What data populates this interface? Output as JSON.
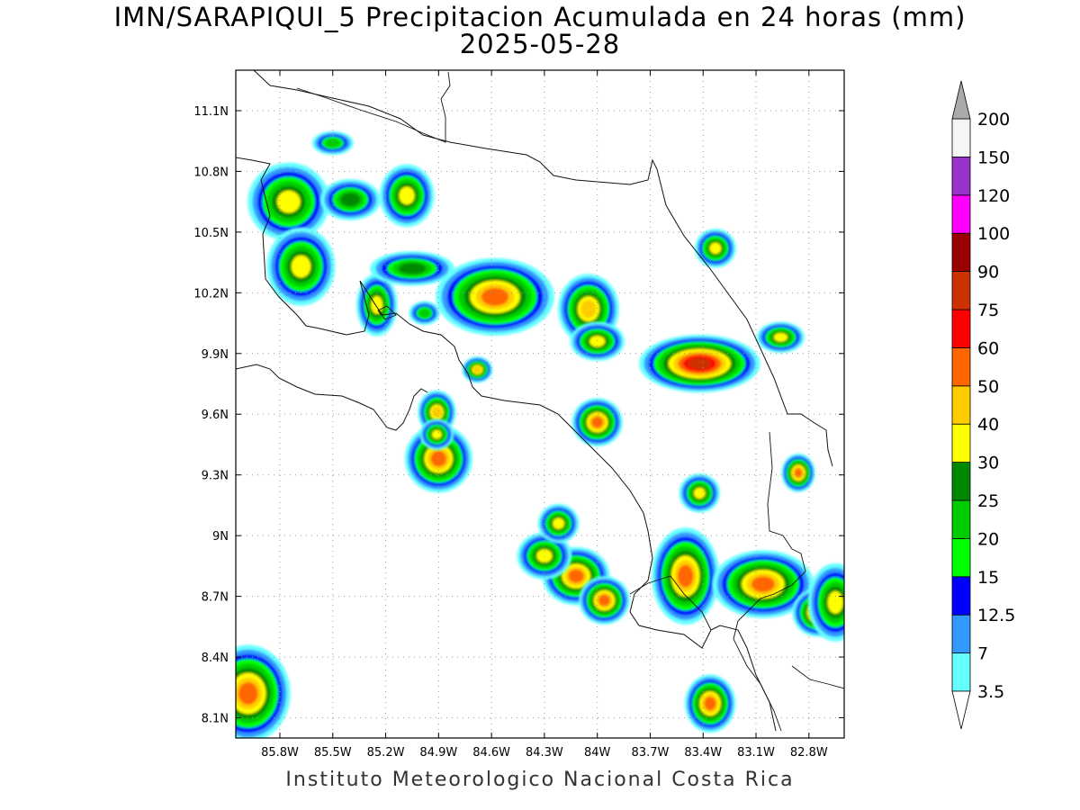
{
  "title": "IMN/SARAPIQUI_5 Precipitacion Acumulada en 24 horas (mm)",
  "date": "2025-05-28",
  "footer": "Instituto Meteorologico Nacional Costa Rica",
  "map": {
    "lon_range": [
      -86.05,
      -82.6
    ],
    "lat_range": [
      8.0,
      11.3
    ],
    "lon_ticks": [
      {
        "value": -85.8,
        "label": "85.8W"
      },
      {
        "value": -85.5,
        "label": "85.5W"
      },
      {
        "value": -85.2,
        "label": "85.2W"
      },
      {
        "value": -84.9,
        "label": "84.9W"
      },
      {
        "value": -84.6,
        "label": "84.6W"
      },
      {
        "value": -84.3,
        "label": "84.3W"
      },
      {
        "value": -84.0,
        "label": "84W"
      },
      {
        "value": -83.7,
        "label": "83.7W"
      },
      {
        "value": -83.4,
        "label": "83.4W"
      },
      {
        "value": -83.1,
        "label": "83.1W"
      },
      {
        "value": -82.8,
        "label": "82.8W"
      }
    ],
    "lat_ticks": [
      {
        "value": 11.1,
        "label": "11.1N"
      },
      {
        "value": 10.8,
        "label": "10.8N"
      },
      {
        "value": 10.5,
        "label": "10.5N"
      },
      {
        "value": 10.2,
        "label": "10.2N"
      },
      {
        "value": 9.9,
        "label": "9.9N"
      },
      {
        "value": 9.6,
        "label": "9.6N"
      },
      {
        "value": 9.3,
        "label": "9.3N"
      },
      {
        "value": 9.0,
        "label": "9N"
      },
      {
        "value": 8.7,
        "label": "8.7N"
      },
      {
        "value": 8.4,
        "label": "8.4N"
      },
      {
        "value": 8.1,
        "label": "8.1N"
      }
    ],
    "grid": true
  },
  "colorbar": {
    "levels": [
      "3.5",
      "7",
      "12.5",
      "15",
      "20",
      "25",
      "30",
      "40",
      "50",
      "60",
      "75",
      "90",
      "100",
      "120",
      "150",
      "200"
    ],
    "colors": [
      "#66ffff",
      "#3399ff",
      "#0000ff",
      "#00ff00",
      "#00cc00",
      "#008800",
      "#ffff00",
      "#ffcc00",
      "#ff6600",
      "#ff0000",
      "#cc3300",
      "#990000",
      "#ff00ff",
      "#9933cc",
      "#f5f5f5",
      "#aaaaaa"
    ]
  },
  "cells": [
    {
      "lon": -85.75,
      "lat": 10.65,
      "rx": 0.12,
      "ry": 0.1,
      "intensity": 7
    },
    {
      "lon": -85.68,
      "lat": 10.33,
      "rx": 0.1,
      "ry": 0.1,
      "intensity": 7
    },
    {
      "lon": -85.4,
      "lat": 10.66,
      "rx": 0.1,
      "ry": 0.06,
      "intensity": 6
    },
    {
      "lon": -85.08,
      "lat": 10.68,
      "rx": 0.08,
      "ry": 0.08,
      "intensity": 7
    },
    {
      "lon": -85.25,
      "lat": 10.14,
      "rx": 0.06,
      "ry": 0.08,
      "intensity": 7
    },
    {
      "lon": -84.58,
      "lat": 10.18,
      "rx": 0.14,
      "ry": 0.08,
      "intensity": 9
    },
    {
      "lon": -84.05,
      "lat": 10.12,
      "rx": 0.08,
      "ry": 0.08,
      "intensity": 8
    },
    {
      "lon": -84.0,
      "lat": 9.96,
      "rx": 0.08,
      "ry": 0.05,
      "intensity": 7
    },
    {
      "lon": -85.05,
      "lat": 10.32,
      "rx": 0.14,
      "ry": 0.05,
      "intensity": 6
    },
    {
      "lon": -84.9,
      "lat": 9.38,
      "rx": 0.08,
      "ry": 0.07,
      "intensity": 9
    },
    {
      "lon": -84.91,
      "lat": 9.61,
      "rx": 0.05,
      "ry": 0.05,
      "intensity": 8
    },
    {
      "lon": -84.91,
      "lat": 9.5,
      "rx": 0.05,
      "ry": 0.04,
      "intensity": 7
    },
    {
      "lon": -83.42,
      "lat": 9.85,
      "rx": 0.12,
      "ry": 0.05,
      "intensity": 11
    },
    {
      "lon": -84.0,
      "lat": 9.56,
      "rx": 0.06,
      "ry": 0.05,
      "intensity": 9
    },
    {
      "lon": -84.12,
      "lat": 8.8,
      "rx": 0.08,
      "ry": 0.06,
      "intensity": 9
    },
    {
      "lon": -84.3,
      "lat": 8.9,
      "rx": 0.08,
      "ry": 0.06,
      "intensity": 7
    },
    {
      "lon": -83.96,
      "lat": 8.68,
      "rx": 0.06,
      "ry": 0.05,
      "intensity": 9
    },
    {
      "lon": -84.22,
      "lat": 9.06,
      "rx": 0.06,
      "ry": 0.05,
      "intensity": 7
    },
    {
      "lon": -83.5,
      "lat": 8.8,
      "rx": 0.08,
      "ry": 0.1,
      "intensity": 9
    },
    {
      "lon": -83.06,
      "lat": 8.76,
      "rx": 0.12,
      "ry": 0.07,
      "intensity": 9
    },
    {
      "lon": -82.75,
      "lat": 8.62,
      "rx": 0.06,
      "ry": 0.05,
      "intensity": 9
    },
    {
      "lon": -82.65,
      "lat": 8.67,
      "rx": 0.08,
      "ry": 0.1,
      "intensity": 7
    },
    {
      "lon": -85.98,
      "lat": 8.22,
      "rx": 0.1,
      "ry": 0.1,
      "intensity": 9
    },
    {
      "lon": -83.36,
      "lat": 8.17,
      "rx": 0.06,
      "ry": 0.06,
      "intensity": 9
    },
    {
      "lon": -82.86,
      "lat": 9.31,
      "rx": 0.04,
      "ry": 0.04,
      "intensity": 9
    },
    {
      "lon": -83.42,
      "lat": 9.21,
      "rx": 0.06,
      "ry": 0.05,
      "intensity": 7
    },
    {
      "lon": -82.96,
      "lat": 9.98,
      "rx": 0.07,
      "ry": 0.04,
      "intensity": 7
    },
    {
      "lon": -83.33,
      "lat": 10.42,
      "rx": 0.06,
      "ry": 0.05,
      "intensity": 7
    },
    {
      "lon": -85.5,
      "lat": 10.94,
      "rx": 0.08,
      "ry": 0.04,
      "intensity": 5
    },
    {
      "lon": -84.98,
      "lat": 10.1,
      "rx": 0.06,
      "ry": 0.04,
      "intensity": 5
    },
    {
      "lon": -84.68,
      "lat": 9.82,
      "rx": 0.04,
      "ry": 0.03,
      "intensity": 8
    }
  ]
}
